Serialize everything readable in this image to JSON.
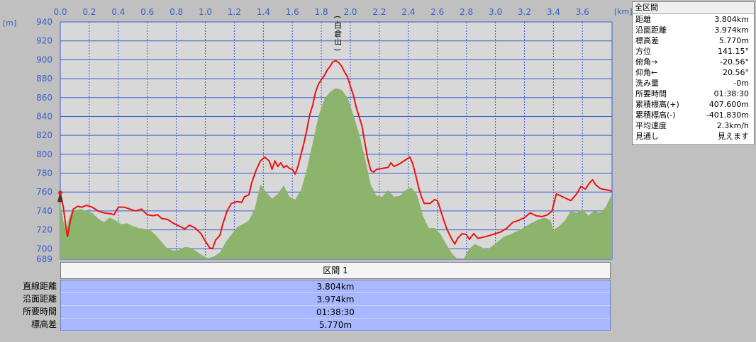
{
  "chart_data": {
    "type": "area",
    "x_unit_label": "[km]",
    "y_unit_label": "[m]",
    "xlim": [
      0,
      3.804
    ],
    "ylim": [
      689,
      940
    ],
    "x_ticks": [
      "0.0",
      "0.2",
      "0.4",
      "0.6",
      "0.8",
      "1.0",
      "1.2",
      "1.4",
      "1.6",
      "1.8",
      "2.0",
      "2.2",
      "2.4",
      "2.6",
      "2.8",
      "3.0",
      "3.2",
      "3.4",
      "3.6"
    ],
    "y_ticks": [
      940,
      920,
      900,
      880,
      860,
      840,
      820,
      800,
      780,
      760,
      740,
      720,
      700
    ],
    "y_min_label": "689",
    "peak_label": "(白倉山)",
    "peak": {
      "x": 1.92,
      "y": 899
    },
    "series": [
      {
        "color": "#ee1111",
        "points": [
          [
            0.0,
            757
          ],
          [
            0.02,
            745
          ],
          [
            0.04,
            722
          ],
          [
            0.05,
            713
          ],
          [
            0.07,
            730
          ],
          [
            0.09,
            742
          ],
          [
            0.12,
            745
          ],
          [
            0.15,
            744
          ],
          [
            0.18,
            746
          ],
          [
            0.22,
            744
          ],
          [
            0.26,
            740
          ],
          [
            0.3,
            738
          ],
          [
            0.35,
            737
          ],
          [
            0.37,
            736
          ],
          [
            0.4,
            744
          ],
          [
            0.44,
            744
          ],
          [
            0.48,
            742
          ],
          [
            0.52,
            740
          ],
          [
            0.56,
            742
          ],
          [
            0.6,
            736
          ],
          [
            0.64,
            735
          ],
          [
            0.67,
            736
          ],
          [
            0.7,
            732
          ],
          [
            0.74,
            731
          ],
          [
            0.78,
            727
          ],
          [
            0.82,
            724
          ],
          [
            0.86,
            721
          ],
          [
            0.89,
            725
          ],
          [
            0.93,
            722
          ],
          [
            0.97,
            716
          ],
          [
            1.0,
            708
          ],
          [
            1.03,
            701
          ],
          [
            1.05,
            700
          ],
          [
            1.07,
            709
          ],
          [
            1.1,
            714
          ],
          [
            1.12,
            726
          ],
          [
            1.15,
            740
          ],
          [
            1.18,
            748
          ],
          [
            1.22,
            750
          ],
          [
            1.25,
            749
          ],
          [
            1.27,
            755
          ],
          [
            1.3,
            757
          ],
          [
            1.32,
            770
          ],
          [
            1.35,
            783
          ],
          [
            1.38,
            793
          ],
          [
            1.41,
            797
          ],
          [
            1.44,
            793
          ],
          [
            1.46,
            784
          ],
          [
            1.48,
            793
          ],
          [
            1.5,
            787
          ],
          [
            1.52,
            791
          ],
          [
            1.54,
            786
          ],
          [
            1.56,
            788
          ],
          [
            1.58,
            785
          ],
          [
            1.6,
            784
          ],
          [
            1.62,
            779
          ],
          [
            1.64,
            788
          ],
          [
            1.66,
            800
          ],
          [
            1.68,
            812
          ],
          [
            1.7,
            826
          ],
          [
            1.72,
            842
          ],
          [
            1.74,
            852
          ],
          [
            1.76,
            866
          ],
          [
            1.78,
            874
          ],
          [
            1.8,
            879
          ],
          [
            1.82,
            883
          ],
          [
            1.84,
            889
          ],
          [
            1.86,
            893
          ],
          [
            1.88,
            898
          ],
          [
            1.9,
            899
          ],
          [
            1.92,
            897
          ],
          [
            1.94,
            893
          ],
          [
            1.96,
            887
          ],
          [
            1.98,
            882
          ],
          [
            2.0,
            872
          ],
          [
            2.02,
            863
          ],
          [
            2.04,
            850
          ],
          [
            2.06,
            840
          ],
          [
            2.08,
            830
          ],
          [
            2.1,
            812
          ],
          [
            2.12,
            795
          ],
          [
            2.14,
            783
          ],
          [
            2.16,
            781
          ],
          [
            2.18,
            784
          ],
          [
            2.22,
            785
          ],
          [
            2.26,
            786
          ],
          [
            2.28,
            791
          ],
          [
            2.3,
            787
          ],
          [
            2.34,
            790
          ],
          [
            2.38,
            794
          ],
          [
            2.41,
            797
          ],
          [
            2.43,
            790
          ],
          [
            2.45,
            778
          ],
          [
            2.47,
            765
          ],
          [
            2.49,
            755
          ],
          [
            2.51,
            748
          ],
          [
            2.55,
            748
          ],
          [
            2.58,
            752
          ],
          [
            2.6,
            751
          ],
          [
            2.62,
            742
          ],
          [
            2.64,
            732
          ],
          [
            2.66,
            723
          ],
          [
            2.68,
            716
          ],
          [
            2.7,
            710
          ],
          [
            2.72,
            705
          ],
          [
            2.74,
            711
          ],
          [
            2.77,
            716
          ],
          [
            2.8,
            715
          ],
          [
            2.82,
            710
          ],
          [
            2.85,
            716
          ],
          [
            2.88,
            711
          ],
          [
            2.91,
            712
          ],
          [
            2.96,
            714
          ],
          [
            3.0,
            716
          ],
          [
            3.04,
            718
          ],
          [
            3.08,
            722
          ],
          [
            3.12,
            728
          ],
          [
            3.16,
            730
          ],
          [
            3.2,
            733
          ],
          [
            3.24,
            738
          ],
          [
            3.28,
            735
          ],
          [
            3.32,
            734
          ],
          [
            3.36,
            736
          ],
          [
            3.39,
            740
          ],
          [
            3.42,
            758
          ],
          [
            3.45,
            756
          ],
          [
            3.49,
            753
          ],
          [
            3.52,
            751
          ],
          [
            3.56,
            758
          ],
          [
            3.59,
            766
          ],
          [
            3.62,
            763
          ],
          [
            3.65,
            770
          ],
          [
            3.67,
            773
          ],
          [
            3.69,
            768
          ],
          [
            3.72,
            764
          ],
          [
            3.74,
            763
          ],
          [
            3.78,
            762
          ],
          [
            3.804,
            761
          ]
        ]
      },
      {
        "color": "#8cb46c",
        "points": [
          [
            0.0,
            748
          ],
          [
            0.02,
            730
          ],
          [
            0.04,
            718
          ],
          [
            0.06,
            732
          ],
          [
            0.08,
            740
          ],
          [
            0.1,
            741
          ],
          [
            0.14,
            742
          ],
          [
            0.18,
            740
          ],
          [
            0.22,
            738
          ],
          [
            0.26,
            732
          ],
          [
            0.3,
            728
          ],
          [
            0.34,
            733
          ],
          [
            0.38,
            730
          ],
          [
            0.42,
            726
          ],
          [
            0.46,
            727
          ],
          [
            0.5,
            724
          ],
          [
            0.54,
            722
          ],
          [
            0.58,
            721
          ],
          [
            0.62,
            720
          ],
          [
            0.66,
            714
          ],
          [
            0.7,
            707
          ],
          [
            0.74,
            700
          ],
          [
            0.78,
            698
          ],
          [
            0.82,
            699
          ],
          [
            0.86,
            702
          ],
          [
            0.9,
            701
          ],
          [
            0.94,
            697
          ],
          [
            0.98,
            693
          ],
          [
            1.02,
            690
          ],
          [
            1.06,
            692
          ],
          [
            1.1,
            696
          ],
          [
            1.14,
            707
          ],
          [
            1.18,
            715
          ],
          [
            1.22,
            723
          ],
          [
            1.26,
            726
          ],
          [
            1.3,
            730
          ],
          [
            1.34,
            742
          ],
          [
            1.38,
            768
          ],
          [
            1.42,
            760
          ],
          [
            1.46,
            753
          ],
          [
            1.5,
            758
          ],
          [
            1.54,
            767
          ],
          [
            1.58,
            755
          ],
          [
            1.62,
            752
          ],
          [
            1.66,
            762
          ],
          [
            1.7,
            784
          ],
          [
            1.74,
            812
          ],
          [
            1.78,
            840
          ],
          [
            1.82,
            858
          ],
          [
            1.86,
            866
          ],
          [
            1.9,
            870
          ],
          [
            1.94,
            868
          ],
          [
            1.98,
            860
          ],
          [
            2.02,
            842
          ],
          [
            2.06,
            822
          ],
          [
            2.1,
            796
          ],
          [
            2.14,
            768
          ],
          [
            2.18,
            756
          ],
          [
            2.22,
            755
          ],
          [
            2.26,
            762
          ],
          [
            2.3,
            755
          ],
          [
            2.34,
            756
          ],
          [
            2.38,
            762
          ],
          [
            2.42,
            765
          ],
          [
            2.46,
            757
          ],
          [
            2.5,
            735
          ],
          [
            2.54,
            722
          ],
          [
            2.58,
            722
          ],
          [
            2.62,
            716
          ],
          [
            2.66,
            705
          ],
          [
            2.7,
            695
          ],
          [
            2.74,
            688
          ],
          [
            2.78,
            687
          ],
          [
            2.82,
            700
          ],
          [
            2.86,
            705
          ],
          [
            2.9,
            702
          ],
          [
            2.94,
            699
          ],
          [
            2.98,
            703
          ],
          [
            3.02,
            708
          ],
          [
            3.06,
            713
          ],
          [
            3.1,
            715
          ],
          [
            3.14,
            718
          ],
          [
            3.18,
            721
          ],
          [
            3.22,
            725
          ],
          [
            3.26,
            728
          ],
          [
            3.3,
            731
          ],
          [
            3.34,
            733
          ],
          [
            3.38,
            730
          ],
          [
            3.4,
            720
          ],
          [
            3.44,
            724
          ],
          [
            3.48,
            730
          ],
          [
            3.52,
            740
          ],
          [
            3.56,
            738
          ],
          [
            3.6,
            742
          ],
          [
            3.64,
            735
          ],
          [
            3.68,
            740
          ],
          [
            3.72,
            738
          ],
          [
            3.76,
            744
          ],
          [
            3.804,
            758
          ]
        ]
      }
    ]
  },
  "stats_panel": {
    "title": "全区間",
    "rows": [
      {
        "label": "距離",
        "value": "3.804km"
      },
      {
        "label": "沿面距離",
        "value": "3.974km"
      },
      {
        "label": "標高差",
        "value": "5.770m"
      },
      {
        "label": "方位",
        "value": "141.15°"
      },
      {
        "label": "俯角→",
        "value": "-20.56°"
      },
      {
        "label": "仰角←",
        "value": "20.56°"
      },
      {
        "label": "洗み量",
        "value": "-0m"
      },
      {
        "label": "所要時間",
        "value": "01:38:30"
      },
      {
        "label": "累積標高(+)",
        "value": "407.600m"
      },
      {
        "label": "累積標高(-)",
        "value": "-401.830m"
      },
      {
        "label": "平均速度",
        "value": "2.3km/h"
      },
      {
        "label": "見通し",
        "value": "見えます"
      }
    ]
  },
  "segment": {
    "header": "区間 1",
    "labels": [
      "直線距離",
      "沿面距離",
      "所要時間",
      "標高差"
    ],
    "values": [
      "3.804km",
      "3.974km",
      "01:38:30",
      "5.770m"
    ]
  },
  "colors": {
    "plot_bg": "#d8d8d8",
    "grid": "#3b5bd0",
    "profile": "#ee1111",
    "terrain": "#8cb46c",
    "axis_text": "#3a5fcd"
  }
}
